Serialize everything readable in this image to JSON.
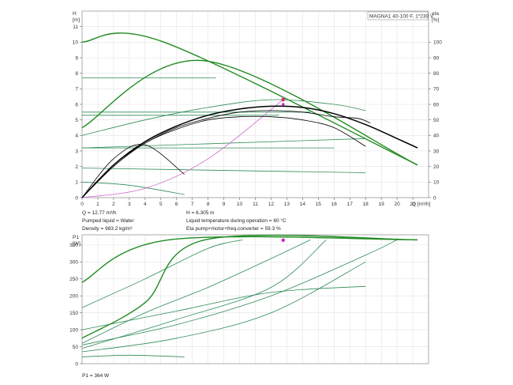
{
  "chart_data": [
    {
      "type": "line",
      "title": "MAGNA1 40-100 F, 1*230 V",
      "ylabel": "H",
      "yunit": "[m]",
      "y2label": "eta",
      "y2unit": "[%]",
      "xlabel": "Q [m³/h]",
      "xlim": [
        0,
        22
      ],
      "ylim": [
        0,
        12
      ],
      "y2lim": [
        0,
        120
      ],
      "xticks": [
        0,
        1,
        2,
        3,
        4,
        5,
        6,
        7,
        8,
        9,
        10,
        11,
        12,
        13,
        14,
        15,
        16,
        17,
        18,
        19,
        20,
        21
      ],
      "yticks": [
        0,
        1,
        2,
        3,
        4,
        5,
        6,
        7,
        8,
        9,
        10,
        11
      ],
      "y2ticks": [
        0,
        10,
        20,
        30,
        40,
        50,
        60,
        70,
        80,
        90,
        100
      ],
      "grid": true,
      "colors": {
        "duty": "#2e8b57",
        "limit": "#228b22",
        "efficiency": "#000000",
        "system": "#cc66cc",
        "point": "#cc22cc"
      },
      "series": [
        {
          "role": "limit",
          "x": [
            0,
            5.2,
            21.3
          ],
          "y": [
            10,
            10,
            2.1
          ]
        },
        {
          "role": "limit",
          "x": [
            0,
            7.8,
            21.3
          ],
          "y": [
            4.5,
            8.8,
            2.1
          ]
        },
        {
          "role": "duty",
          "x": [
            0,
            8.5
          ],
          "y": [
            7.7,
            7.7
          ]
        },
        {
          "role": "duty",
          "x": [
            0,
            14.5
          ],
          "y": [
            5.5,
            5.5
          ]
        },
        {
          "role": "duty",
          "x": [
            0,
            12.5
          ],
          "y": [
            5.3,
            5.3
          ]
        },
        {
          "role": "duty",
          "x": [
            0,
            16.0
          ],
          "y": [
            3.2,
            3.2
          ]
        },
        {
          "role": "duty",
          "x": [
            0,
            18.0
          ],
          "y": [
            1.9,
            1.6
          ]
        },
        {
          "role": "duty",
          "x": [
            0,
            3.0,
            6.5
          ],
          "y": [
            1.0,
            0.8,
            0.2
          ]
        },
        {
          "role": "duty",
          "x": [
            0,
            18.0
          ],
          "y": [
            3.2,
            3.8
          ]
        },
        {
          "role": "duty",
          "x": [
            0,
            4.0,
            8.0,
            12.0,
            16.0,
            18.0
          ],
          "y": [
            4.0,
            5.0,
            5.8,
            6.3,
            6.0,
            5.6
          ]
        },
        {
          "role": "efficiency",
          "x": [
            0,
            2,
            4,
            6,
            8,
            10,
            12,
            14,
            16,
            18,
            20,
            21.3
          ],
          "y": [
            0,
            21,
            36,
            46,
            53,
            57,
            58.8,
            58,
            54,
            47,
            38,
            32
          ]
        },
        {
          "role": "efficiency",
          "x": [
            0,
            2,
            4,
            6,
            8,
            10,
            12,
            14,
            16,
            18
          ],
          "y": [
            0,
            20,
            35,
            44,
            50,
            52,
            52,
            50,
            45,
            33
          ]
        },
        {
          "role": "efficiency",
          "x": [
            0,
            2,
            4,
            6,
            8,
            10,
            12,
            14,
            16,
            17.5,
            18.3
          ],
          "y": [
            0,
            21,
            35,
            45,
            51,
            55,
            56,
            55,
            52,
            51,
            48
          ]
        },
        {
          "role": "efficiency",
          "x": [
            0,
            2,
            4,
            6.5
          ],
          "y": [
            0,
            25,
            34,
            15
          ]
        },
        {
          "role": "system",
          "x": [
            0,
            4,
            8,
            12.77
          ],
          "y": [
            0,
            0.6,
            2.5,
            6.305
          ]
        }
      ],
      "duty_point": {
        "x": 12.77,
        "y": 6.305
      }
    },
    {
      "type": "line",
      "ylabel": "P1",
      "yunit": "[W]",
      "ylim": [
        0,
        380
      ],
      "xlim": [
        0,
        22
      ],
      "yticks": [
        0,
        50,
        100,
        150,
        200,
        250,
        300,
        350
      ],
      "grid": true,
      "series": [
        {
          "role": "limit",
          "x": [
            0,
            5.5,
            21.3
          ],
          "y": [
            240,
            365,
            365
          ]
        },
        {
          "role": "limit",
          "x": [
            0,
            4.0,
            7.8,
            21.3
          ],
          "y": [
            75,
            180,
            365,
            365
          ]
        },
        {
          "role": "duty",
          "x": [
            0,
            4.0,
            8.0,
            10.2
          ],
          "y": [
            165,
            250,
            340,
            365
          ]
        },
        {
          "role": "duty",
          "x": [
            0,
            4.0,
            8.0,
            12.0,
            14.5
          ],
          "y": [
            60,
            150,
            225,
            310,
            365
          ]
        },
        {
          "role": "duty",
          "x": [
            0,
            6.0,
            12.0,
            15.5
          ],
          "y": [
            45,
            130,
            225,
            365
          ]
        },
        {
          "role": "duty",
          "x": [
            0,
            6.0,
            12.0,
            18.0,
            20.0
          ],
          "y": [
            55,
            115,
            200,
            320,
            365
          ]
        },
        {
          "role": "duty",
          "x": [
            0,
            6.0,
            12.0,
            18.0
          ],
          "y": [
            35,
            75,
            150,
            300
          ]
        },
        {
          "role": "duty",
          "x": [
            0,
            6.0,
            12.0,
            18.0
          ],
          "y": [
            100,
            155,
            210,
            228
          ]
        },
        {
          "role": "duty",
          "x": [
            0,
            3.0,
            6.5
          ],
          "y": [
            20,
            25,
            20
          ]
        }
      ],
      "duty_point": {
        "x": 12.77,
        "y": 364
      }
    }
  ],
  "info": {
    "q": "Q = 12.77 m³/h",
    "h": "H = 6.305 m",
    "liquid": "Pumped liquid = Water",
    "temp": "Liquid temperature during operation = 60 °C",
    "density": "Density = 983.2 kg/m³",
    "eta": "Eta pump+motor+freq.converter = 59.3 %",
    "p1": "P1 = 364 W"
  }
}
